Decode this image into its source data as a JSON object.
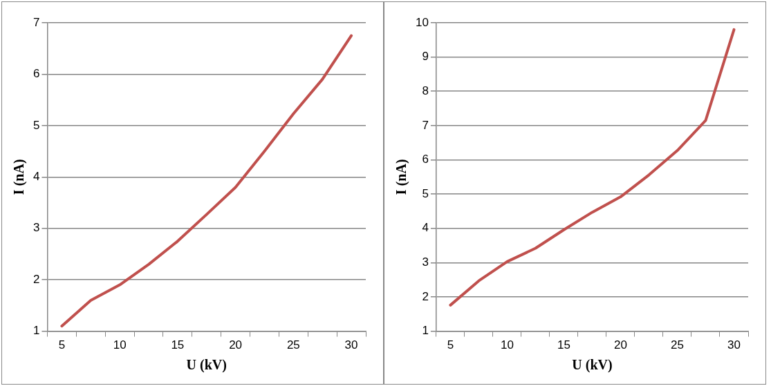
{
  "chart_data": [
    {
      "type": "line",
      "xlabel": "U (kV)",
      "ylabel": "I (nA)",
      "categories": [
        "5",
        null,
        "10",
        null,
        "15",
        null,
        "20",
        null,
        "25",
        null,
        "30"
      ],
      "values": [
        1.1,
        1.6,
        1.9,
        2.3,
        2.75,
        3.27,
        3.8,
        4.5,
        5.23,
        5.9,
        6.75
      ],
      "color": "#c0504d",
      "ylim": [
        1,
        7
      ],
      "yticks": [
        1,
        2,
        3,
        4,
        5,
        6,
        7
      ],
      "grid": "y"
    },
    {
      "type": "line",
      "xlabel": "U (kV)",
      "ylabel": "I (nA)",
      "categories": [
        "5",
        null,
        "10",
        null,
        "15",
        null,
        "20",
        null,
        "25",
        null,
        "30"
      ],
      "values": [
        1.76,
        2.47,
        3.03,
        3.42,
        3.96,
        4.47,
        4.92,
        5.56,
        6.27,
        7.15,
        9.8
      ],
      "color": "#c0504d",
      "ylim": [
        1,
        10
      ],
      "yticks": [
        1,
        2,
        3,
        4,
        5,
        6,
        7,
        8,
        9,
        10
      ],
      "grid": "y"
    }
  ]
}
